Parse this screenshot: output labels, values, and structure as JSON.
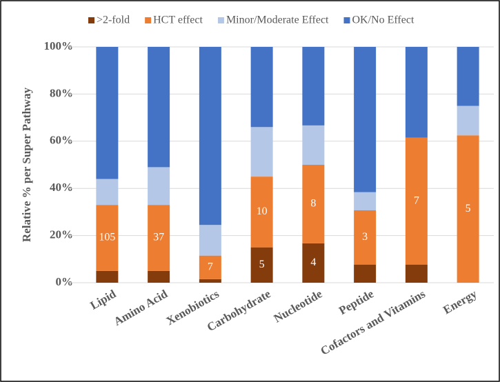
{
  "chart_data": {
    "type": "stacked_bar_100",
    "y_label": "Relative % per Super Pathway",
    "categories": [
      "Lipid",
      "Amino Acid",
      "Xenobiotics",
      "Carbohydrate",
      "Nucleotide",
      "Peptide",
      "Cofactors and Vitamins",
      "Energy"
    ],
    "series": [
      {
        "name": ">2-fold",
        "color": "#843c0c",
        "values": [
          5,
          5,
          1.5,
          15,
          16.7,
          7.7,
          7.7,
          0
        ],
        "data_labels": [
          null,
          null,
          null,
          5,
          4,
          null,
          null,
          null
        ]
      },
      {
        "name": "HCT effect",
        "color": "#ed7d31",
        "values": [
          28,
          28,
          10,
          30,
          33.3,
          23,
          53.8,
          62.5
        ],
        "data_labels": [
          105,
          37,
          7,
          10,
          8,
          3,
          7,
          5
        ]
      },
      {
        "name": "Minor/Moderate Effect",
        "color": "#b4c7e7",
        "values": [
          11,
          16,
          13,
          21,
          16.7,
          7.7,
          0,
          12.5
        ]
      },
      {
        "name": "OK/No Effect",
        "color": "#4472c4",
        "values": [
          56,
          51,
          75.5,
          34,
          33.3,
          61.6,
          38.5,
          25
        ]
      }
    ],
    "ylim": [
      0,
      100
    ],
    "yticks": [
      {
        "value": 0,
        "label": "0%"
      },
      {
        "value": 20,
        "label": "20%"
      },
      {
        "value": 40,
        "label": "40%"
      },
      {
        "value": 60,
        "label": "60%"
      },
      {
        "value": 80,
        "label": "80%"
      },
      {
        "value": 100,
        "label": "100%"
      }
    ],
    "grid": true
  }
}
